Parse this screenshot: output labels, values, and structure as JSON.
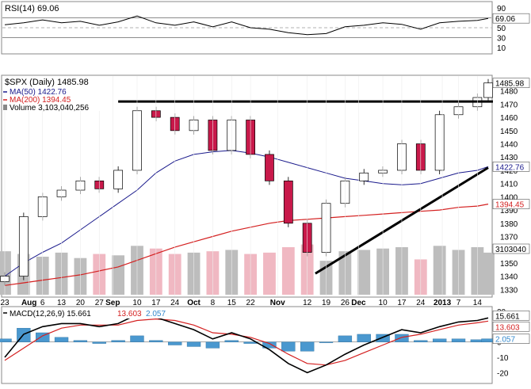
{
  "chart_data": [
    {
      "type": "line",
      "panel": "rsi",
      "title": "RSI(14) 69.06",
      "ticks": [
        90,
        70,
        50,
        30,
        10
      ],
      "ylim": [
        0,
        100
      ],
      "reference_lines": [
        70,
        50,
        30
      ],
      "last_value": 69.06,
      "last_value_label": "69.06",
      "x": [
        "2012-07-23",
        "2012-07-30",
        "2012-08-06",
        "2012-08-13",
        "2012-08-20",
        "2012-08-27",
        "2012-09-03",
        "2012-09-10",
        "2012-09-17",
        "2012-09-24",
        "2012-10-01",
        "2012-10-08",
        "2012-10-15",
        "2012-10-22",
        "2012-10-29",
        "2012-11-05",
        "2012-11-12",
        "2012-11-19",
        "2012-11-26",
        "2012-12-03",
        "2012-12-10",
        "2012-12-17",
        "2012-12-24",
        "2012-12-31",
        "2013-01-07",
        "2013-01-14",
        "2013-01-18"
      ],
      "values": [
        56,
        60,
        66,
        60,
        63,
        55,
        62,
        74,
        60,
        55,
        62,
        52,
        62,
        50,
        47,
        40,
        36,
        38,
        52,
        55,
        60,
        57,
        47,
        60,
        63,
        65,
        69.06
      ]
    },
    {
      "type": "candlestick",
      "panel": "price",
      "title": "$SPX (Daily) 1485.98",
      "legend": [
        {
          "label": "MA(50) 1422.76",
          "color": "#1a1a8c"
        },
        {
          "label": "MA(200) 1394.45",
          "color": "#d42020"
        },
        {
          "label": "Volume 3,103,040,256",
          "color": "#888888"
        }
      ],
      "ticks": [
        1480,
        1470,
        1460,
        1450,
        1440,
        1430,
        1420,
        1410,
        1400,
        1390,
        1380,
        1370,
        1360,
        1350,
        1340,
        1330
      ],
      "ylim": [
        1326,
        1490
      ],
      "x": [
        "2012-07-23",
        "2012-07-30",
        "2012-08-06",
        "2012-08-13",
        "2012-08-20",
        "2012-08-27",
        "2012-09-03",
        "2012-09-10",
        "2012-09-17",
        "2012-09-24",
        "2012-10-01",
        "2012-10-08",
        "2012-10-15",
        "2012-10-22",
        "2012-10-29",
        "2012-11-05",
        "2012-11-12",
        "2012-11-19",
        "2012-11-26",
        "2012-12-03",
        "2012-12-10",
        "2012-12-17",
        "2012-12-24",
        "2012-12-31",
        "2013-01-07",
        "2013-01-14",
        "2013-01-18"
      ],
      "close": [
        1340,
        1385,
        1400,
        1405,
        1412,
        1406,
        1420,
        1465,
        1460,
        1450,
        1458,
        1435,
        1458,
        1432,
        1412,
        1380,
        1358,
        1395,
        1412,
        1418,
        1420,
        1440,
        1420,
        1462,
        1468,
        1475,
        1485.98
      ],
      "ma50": [
        1340,
        1350,
        1358,
        1365,
        1375,
        1385,
        1395,
        1405,
        1418,
        1427,
        1432,
        1434,
        1435,
        1433,
        1430,
        1426,
        1422,
        1418,
        1414,
        1412,
        1410,
        1409,
        1410,
        1414,
        1418,
        1420,
        1422.76
      ],
      "ma200": [
        1333,
        1335,
        1337,
        1339,
        1341,
        1344,
        1347,
        1352,
        1357,
        1362,
        1366,
        1370,
        1374,
        1377,
        1380,
        1382,
        1383,
        1384,
        1385,
        1386,
        1387,
        1388,
        1389,
        1390,
        1392,
        1393,
        1394.45
      ],
      "annotations": [
        {
          "type": "horizontal-line",
          "level": 1472
        },
        {
          "type": "trend-line",
          "from": [
            "2012-11-15",
            1342
          ],
          "to": [
            "2013-01-18",
            1422
          ]
        }
      ],
      "axis_labels": [
        "1485.98",
        "1422.76",
        "1394.45",
        "3103040"
      ],
      "x_tick_labels": [
        "23",
        "Aug",
        "6",
        "13",
        "20",
        "27",
        "Sep",
        "10",
        "17",
        "24",
        "Oct",
        "8",
        "15",
        "22",
        "Nov",
        "12",
        "19",
        "26",
        "Dec",
        "10",
        "17",
        "24",
        "2013",
        "7",
        "14"
      ]
    },
    {
      "type": "bar",
      "panel": "volume",
      "values": [
        3.2,
        3.0,
        2.8,
        3.1,
        2.7,
        3.0,
        2.9,
        3.6,
        3.4,
        3.0,
        3.1,
        3.2,
        3.3,
        3.0,
        3.1,
        3.5,
        3.7,
        2.5,
        3.2,
        3.3,
        3.4,
        3.5,
        2.6,
        3.6,
        3.3,
        3.5,
        3.1
      ],
      "unit": "billions (shares)"
    },
    {
      "type": "line",
      "panel": "macd",
      "title": "MACD(12,26,9) 15.661, 13.603, 2.057",
      "legend": [
        {
          "label": "MACD(12,26,9) 15.661",
          "color": "#000000"
        },
        {
          "label": "13.603",
          "color": "#d42020"
        },
        {
          "label": "2.057",
          "color": "#3388cc"
        }
      ],
      "ticks": [
        20,
        10,
        0,
        -10,
        -20
      ],
      "ylim": [
        -26,
        22
      ],
      "axis_labels": [
        "15.661",
        "13.603",
        "2.057"
      ],
      "macd": [
        -10,
        5,
        10,
        12,
        12,
        10,
        12,
        18,
        16,
        12,
        8,
        2,
        6,
        2,
        -5,
        -14,
        -20,
        -15,
        -8,
        -2,
        3,
        8,
        6,
        10,
        13,
        14,
        15.661
      ],
      "signal": [
        -12,
        -4,
        4,
        9,
        11,
        11,
        11,
        14,
        15,
        14,
        11,
        6,
        5,
        3,
        -1,
        -8,
        -14,
        -15,
        -12,
        -7,
        -2,
        3,
        5,
        8,
        11,
        12.5,
        13.603
      ],
      "histogram": [
        2,
        9,
        6,
        3,
        1,
        -1,
        1,
        4,
        1,
        -2,
        -3,
        -4,
        1,
        -1,
        -4,
        -6,
        -6,
        0,
        4,
        5,
        5,
        5,
        1,
        2,
        2,
        1.5,
        2.057
      ]
    }
  ]
}
